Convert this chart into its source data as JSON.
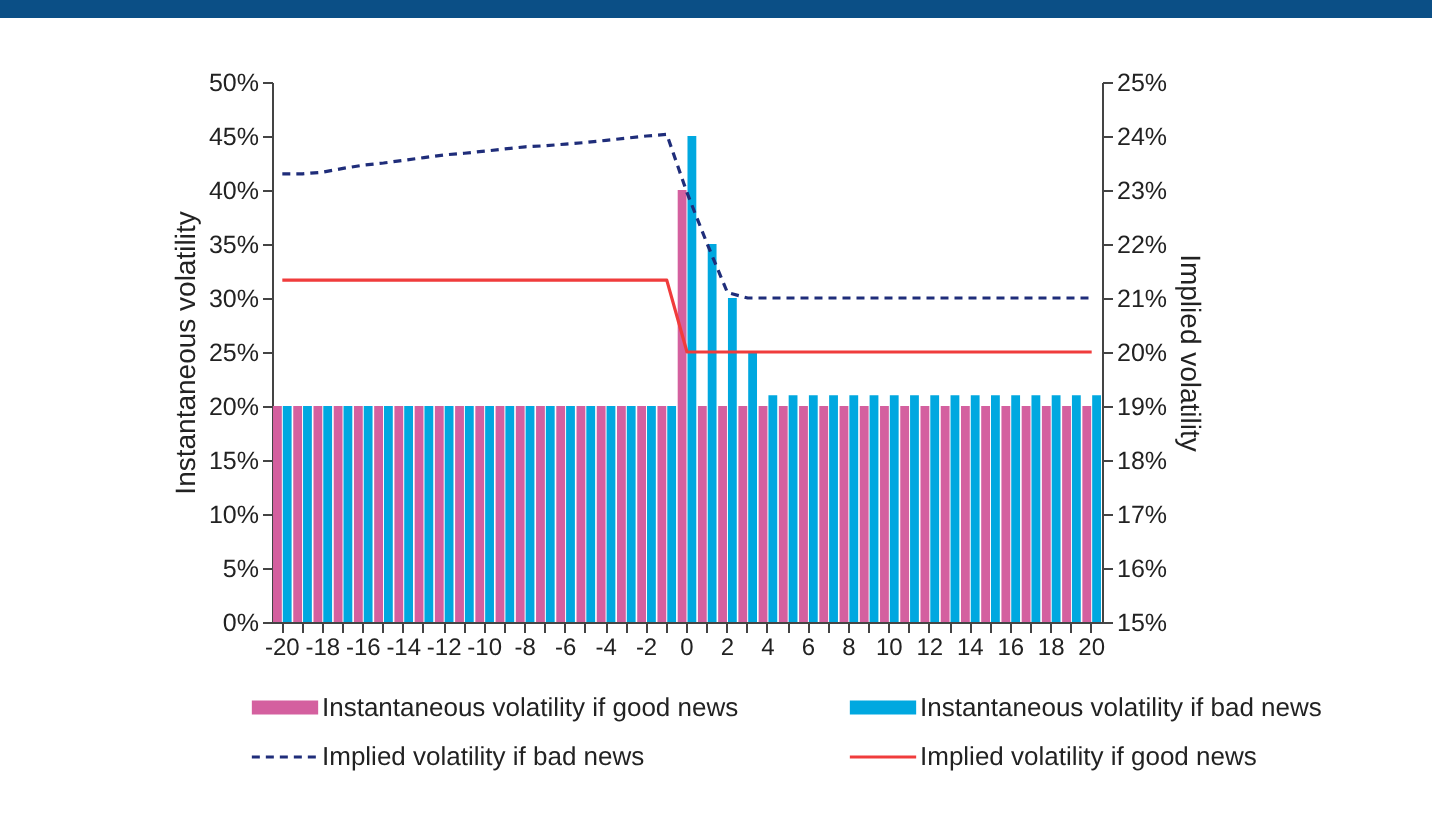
{
  "chart_data": {
    "type": "bar",
    "ylabel": "Instantaneous volatility",
    "y2label": "Implied volatility",
    "categories": [
      "-20",
      null,
      "-18",
      null,
      "-16",
      null,
      "-14",
      null,
      "-12",
      null,
      "-10",
      null,
      "-8",
      null,
      "-6",
      null,
      "-4",
      null,
      "-2",
      null,
      "0",
      null,
      "2",
      null,
      "4",
      null,
      "6",
      null,
      "8",
      null,
      "10",
      null,
      "12",
      null,
      "14",
      null,
      "16",
      null,
      "18",
      null,
      "20"
    ],
    "series": [
      {
        "name": "Instantaneous volatility if good news",
        "color": "#d4609f",
        "values": [
          20,
          20,
          20,
          20,
          20,
          20,
          20,
          20,
          20,
          20,
          20,
          20,
          20,
          20,
          20,
          20,
          20,
          20,
          20,
          20,
          40,
          20,
          20,
          20,
          20,
          20,
          20,
          20,
          20,
          20,
          20,
          20,
          20,
          20,
          20,
          20,
          20,
          20,
          20,
          20,
          20
        ]
      },
      {
        "name": "Instantaneous volatility if bad news",
        "color": "#00a8e0",
        "values": [
          20,
          20,
          20,
          20,
          20,
          20,
          20,
          20,
          20,
          20,
          20,
          20,
          20,
          20,
          20,
          20,
          20,
          20,
          20,
          20,
          45,
          35,
          30,
          25,
          21,
          21,
          21,
          21,
          21,
          21,
          21,
          21,
          21,
          21,
          21,
          21,
          21,
          21,
          21,
          21,
          21
        ]
      },
      {
        "name": "Implied volatility if bad news",
        "color": "#1f2d7a",
        "type": "line",
        "axis": "y2",
        "line_style": "dashed",
        "values": [
          23.3,
          23.3,
          23.33,
          23.4,
          23.46,
          23.5,
          23.55,
          23.6,
          23.65,
          23.68,
          23.72,
          23.76,
          23.8,
          23.82,
          23.85,
          23.88,
          23.92,
          23.96,
          24.0,
          24.03,
          22.95,
          22.0,
          21.1,
          21,
          21,
          21,
          21,
          21,
          21,
          21,
          21,
          21,
          21,
          21,
          21,
          21,
          21,
          21,
          21,
          21,
          21
        ]
      },
      {
        "name": "Implied volatility if good news",
        "color": "#f03c3c",
        "type": "line",
        "axis": "y2",
        "line_style": "solid",
        "values": [
          21.33,
          21.33,
          21.33,
          21.33,
          21.33,
          21.33,
          21.33,
          21.33,
          21.33,
          21.33,
          21.33,
          21.33,
          21.33,
          21.33,
          21.33,
          21.33,
          21.33,
          21.33,
          21.33,
          21.33,
          20,
          20,
          20,
          20,
          20,
          20,
          20,
          20,
          20,
          20,
          20,
          20,
          20,
          20,
          20,
          20,
          20,
          20,
          20,
          20,
          20
        ]
      }
    ],
    "ylim": [
      0,
      50
    ],
    "yticks": [
      {
        "value": 0,
        "label": "0%"
      },
      {
        "value": 5,
        "label": "5%"
      },
      {
        "value": 10,
        "label": "10%"
      },
      {
        "value": 15,
        "label": "15%"
      },
      {
        "value": 20,
        "label": "20%"
      },
      {
        "value": 25,
        "label": "25%"
      },
      {
        "value": 30,
        "label": "30%"
      },
      {
        "value": 35,
        "label": "35%"
      },
      {
        "value": 40,
        "label": "40%"
      },
      {
        "value": 45,
        "label": "45%"
      },
      {
        "value": 50,
        "label": "50%"
      }
    ],
    "y2lim": [
      15,
      25
    ],
    "y2ticks": [
      {
        "value": 15,
        "label": "15%"
      },
      {
        "value": 16,
        "label": "16%"
      },
      {
        "value": 17,
        "label": "17%"
      },
      {
        "value": 18,
        "label": "18%"
      },
      {
        "value": 19,
        "label": "19%"
      },
      {
        "value": 20,
        "label": "20%"
      },
      {
        "value": 21,
        "label": "21%"
      },
      {
        "value": 22,
        "label": "22%"
      },
      {
        "value": 23,
        "label": "23%"
      },
      {
        "value": 24,
        "label": "24%"
      },
      {
        "value": 25,
        "label": "25%"
      }
    ],
    "grid": false,
    "legend": "bottom"
  }
}
